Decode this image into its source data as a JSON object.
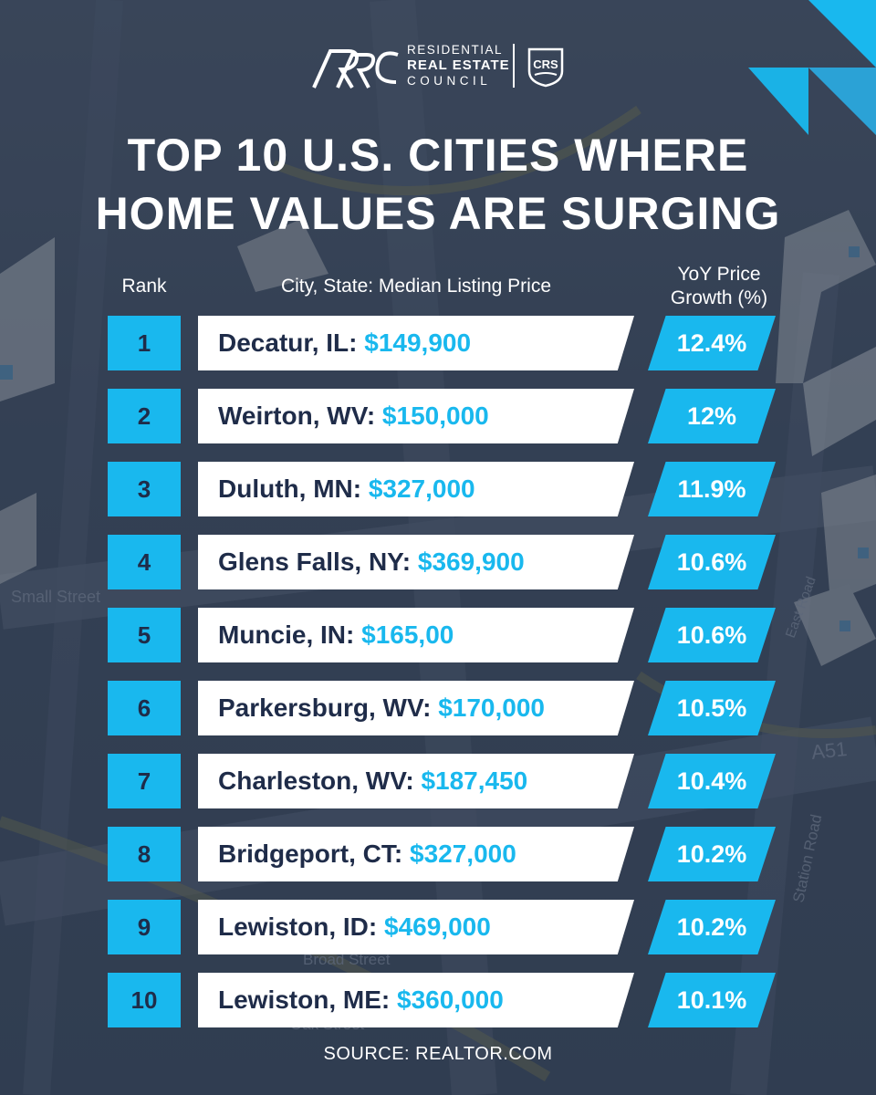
{
  "colors": {
    "accent": "#19b8ee",
    "navy": "#1f2c49",
    "background": "#3b475a",
    "white": "#ffffff"
  },
  "brand": {
    "monogram": "RRC",
    "line1": "RESIDENTIAL",
    "line2": "REAL ESTATE",
    "line3": "COUNCIL",
    "badge": "CRS"
  },
  "title": {
    "line1": "TOP 10 U.S. CITIES WHERE",
    "line2": "HOME VALUES ARE SURGING"
  },
  "headers": {
    "rank": "Rank",
    "city": "City, State: Median Listing Price",
    "yoy_line1": "YoY Price",
    "yoy_line2": "Growth (%)"
  },
  "rows": [
    {
      "rank": "1",
      "city": "Decatur, IL: ",
      "price": "$149,900",
      "growth": "12.4%"
    },
    {
      "rank": "2",
      "city": "Weirton, WV: ",
      "price": "$150,000",
      "growth": "12%"
    },
    {
      "rank": "3",
      "city": "Duluth, MN: ",
      "price": "$327,000",
      "growth": "11.9%"
    },
    {
      "rank": "4",
      "city": "Glens Falls, NY: ",
      "price": "$369,900",
      "growth": "10.6%"
    },
    {
      "rank": "5",
      "city": "Muncie, IN: ",
      "price": "$165,00",
      "growth": "10.6%"
    },
    {
      "rank": "6",
      "city": "Parkersburg, WV: ",
      "price": "$170,000",
      "growth": "10.5%"
    },
    {
      "rank": "7",
      "city": "Charleston, WV: ",
      "price": "$187,450",
      "growth": "10.4%"
    },
    {
      "rank": "8",
      "city": "Bridgeport, CT: ",
      "price": "$327,000",
      "growth": "10.2%"
    },
    {
      "rank": "9",
      "city": "Lewiston, ID: ",
      "price": "$469,000",
      "growth": "10.2%"
    },
    {
      "rank": "10",
      "city": "Lewiston, ME: ",
      "price": "$360,000",
      "growth": "10.1%"
    }
  ],
  "map_labels": [
    "Small Street",
    "Broad Street",
    "Oak Street",
    "A51",
    "East Road",
    "Station Road"
  ],
  "source": "SOURCE: REALTOR.COM"
}
